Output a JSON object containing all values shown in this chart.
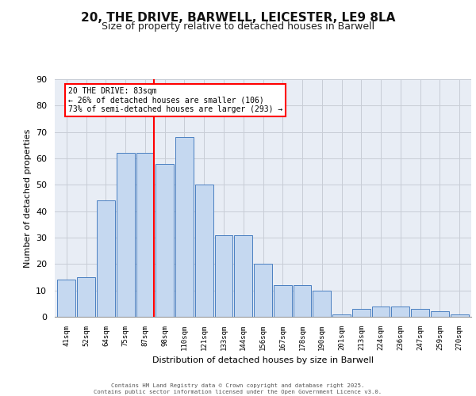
{
  "title_line1": "20, THE DRIVE, BARWELL, LEICESTER, LE9 8LA",
  "title_line2": "Size of property relative to detached houses in Barwell",
  "xlabel": "Distribution of detached houses by size in Barwell",
  "ylabel": "Number of detached properties",
  "categories": [
    "41sqm",
    "52sqm",
    "64sqm",
    "75sqm",
    "87sqm",
    "98sqm",
    "110sqm",
    "121sqm",
    "133sqm",
    "144sqm",
    "156sqm",
    "167sqm",
    "178sqm",
    "190sqm",
    "201sqm",
    "213sqm",
    "224sqm",
    "236sqm",
    "247sqm",
    "259sqm",
    "270sqm"
  ],
  "values": [
    14,
    15,
    44,
    62,
    62,
    58,
    68,
    50,
    31,
    31,
    20,
    12,
    12,
    10,
    1,
    3,
    4,
    4,
    3,
    2,
    1
  ],
  "bar_color": "#c5d8f0",
  "bar_edge_color": "#4a7fc1",
  "grid_color": "#c8cdd6",
  "background_color": "#e8edf5",
  "annotation_line1": "20 THE DRIVE: 83sqm",
  "annotation_line2": "← 26% of detached houses are smaller (106)",
  "annotation_line3": "73% of semi-detached houses are larger (293) →",
  "vline_x_index": 4,
  "ylim": [
    0,
    90
  ],
  "yticks": [
    0,
    10,
    20,
    30,
    40,
    50,
    60,
    70,
    80,
    90
  ],
  "footer_line1": "Contains HM Land Registry data © Crown copyright and database right 2025.",
  "footer_line2": "Contains public sector information licensed under the Open Government Licence v3.0."
}
